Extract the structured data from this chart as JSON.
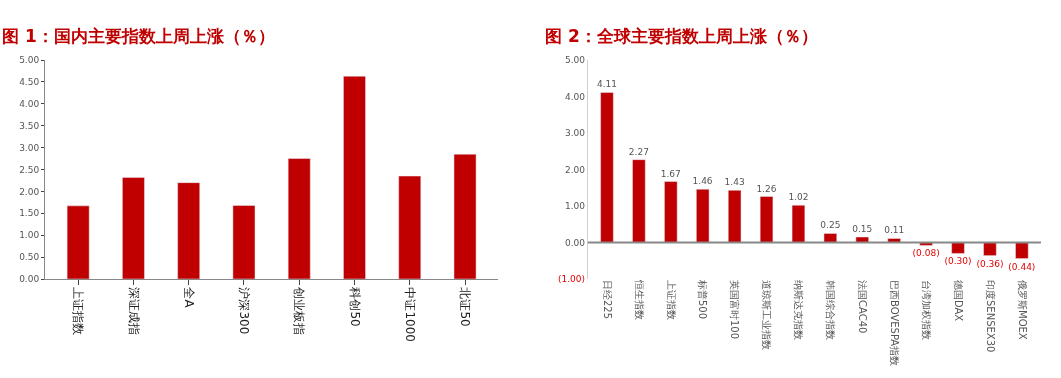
{
  "chart_data": [
    {
      "type": "bar",
      "title": "图 1：国内主要指数上周上涨（％）",
      "categories": [
        "上证指数",
        "深证成指",
        "全A",
        "沪深300",
        "创业板指",
        "科创50",
        "中证1000",
        "北证50"
      ],
      "values": [
        1.67,
        2.32,
        2.2,
        1.68,
        2.75,
        4.63,
        2.35,
        2.85
      ],
      "color": "#c00000",
      "ylim": [
        0,
        5
      ],
      "yticks": [
        {
          "value": 0,
          "label": "0.00"
        },
        {
          "value": 0.5,
          "label": "0.50"
        },
        {
          "value": 1,
          "label": "1.00"
        },
        {
          "value": 1.5,
          "label": "1.50"
        },
        {
          "value": 2,
          "label": "2.00"
        },
        {
          "value": 2.5,
          "label": "2.50"
        },
        {
          "value": 3,
          "label": "3.00"
        },
        {
          "value": 3.5,
          "label": "3.50"
        },
        {
          "value": 4,
          "label": "4.00"
        },
        {
          "value": 4.5,
          "label": "4.50"
        },
        {
          "value": 5,
          "label": "5.00"
        }
      ],
      "grid": false
    },
    {
      "type": "bar",
      "title": "图 2：全球主要指数上周上涨（％）",
      "categories": [
        "日经225",
        "恒生指数",
        "上证指数",
        "标普500",
        "英国富时100",
        "道琼斯工业指数",
        "纳斯达克指数",
        "韩国综合指数",
        "法国CAC40",
        "巴西BOVESPA指数",
        "台湾加权指数",
        "德国DAX",
        "印度SENSEX30",
        "俄罗斯MOEX"
      ],
      "values": [
        4.11,
        2.27,
        1.67,
        1.46,
        1.43,
        1.26,
        1.02,
        0.25,
        0.15,
        0.11,
        -0.08,
        -0.3,
        -0.36,
        -0.44
      ],
      "value_labels": [
        "4.11",
        "2.27",
        "1.67",
        "1.46",
        "1.43",
        "1.26",
        "1.02",
        "0.25",
        "0.15",
        "0.11",
        "(0.08)",
        "(0.30)",
        "(0.36)",
        "(0.44)"
      ],
      "color": "#c00000",
      "ref_lines": [
        {
          "axis": "y",
          "value": 0,
          "color": "#888888"
        }
      ],
      "ylim": [
        -1,
        5
      ],
      "yticks": [
        {
          "value": -1,
          "label": "(1.00)"
        },
        {
          "value": 0,
          "label": "0.00"
        },
        {
          "value": 1,
          "label": "1.00"
        },
        {
          "value": 2,
          "label": "2.00"
        },
        {
          "value": 3,
          "label": "3.00"
        },
        {
          "value": 4,
          "label": "4.00"
        },
        {
          "value": 5,
          "label": "5.00"
        }
      ],
      "grid": false
    }
  ]
}
